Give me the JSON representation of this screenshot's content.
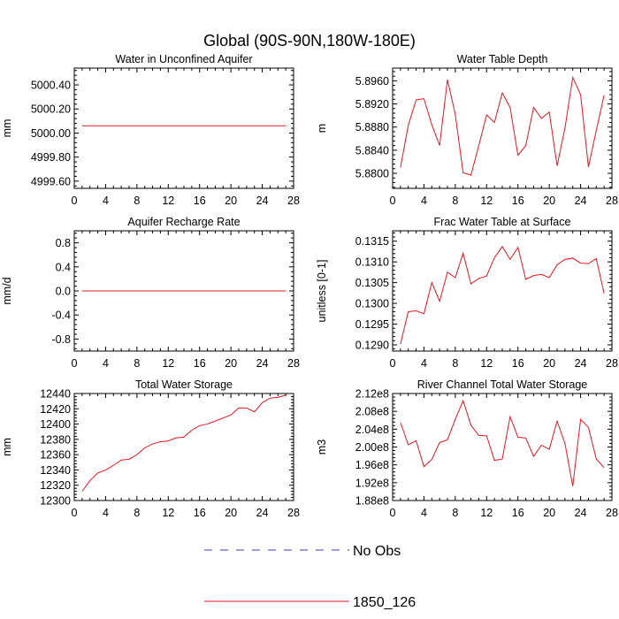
{
  "figure": {
    "title": "Global (90S-90N,180W-180E)",
    "legend": [
      {
        "label": "No Obs",
        "color": "#3b3bbf",
        "style": "dashed"
      },
      {
        "label": "1850_126",
        "color": "#e8141e",
        "style": "solid"
      }
    ]
  },
  "chart_data": [
    {
      "type": "line",
      "title": "Water in Unconfined Aquifer",
      "ylabel": "mm",
      "xlim": [
        0,
        28
      ],
      "ylim": [
        4999.54,
        5000.54
      ],
      "xticks": [
        0,
        4,
        8,
        12,
        16,
        20,
        24,
        28
      ],
      "yticks": [
        4999.6,
        4999.8,
        5000.0,
        5000.2,
        5000.4
      ],
      "ytick_labels": [
        "4999.60",
        "4999.80",
        "5000.00",
        "5000.20",
        "5000.40"
      ],
      "grid": false,
      "series": [
        {
          "name": "1850_126",
          "x": [
            1,
            27
          ],
          "values": [
            5000.06,
            5000.06
          ]
        }
      ]
    },
    {
      "type": "line",
      "title": "Water Table Depth",
      "ylabel": "m",
      "xlim": [
        0,
        28
      ],
      "ylim": [
        5.8774,
        5.8982
      ],
      "xticks": [
        0,
        4,
        8,
        12,
        16,
        20,
        24,
        28
      ],
      "yticks": [
        5.88,
        5.884,
        5.888,
        5.892,
        5.896
      ],
      "ytick_labels": [
        "5.8800",
        "5.8840",
        "5.8880",
        "5.8920",
        "5.8960"
      ],
      "grid": false,
      "series": [
        {
          "name": "1850_126",
          "x": [
            1,
            2,
            3,
            4,
            5,
            6,
            7,
            8,
            9,
            10,
            11,
            12,
            13,
            14,
            15,
            16,
            17,
            18,
            19,
            20,
            21,
            22,
            23,
            24,
            25,
            26,
            27
          ],
          "values": [
            5.881,
            5.8883,
            5.8927,
            5.8929,
            5.8884,
            5.8848,
            5.8962,
            5.8902,
            5.8801,
            5.8797,
            5.8848,
            5.8901,
            5.8888,
            5.8939,
            5.8914,
            5.8831,
            5.8848,
            5.8914,
            5.8895,
            5.8906,
            5.8813,
            5.8878,
            5.8966,
            5.8936,
            5.8811,
            5.8874,
            5.8935
          ]
        }
      ]
    },
    {
      "type": "line",
      "title": "Aquifer Recharge Rate",
      "ylabel": "mm/d",
      "xlim": [
        0,
        28
      ],
      "ylim": [
        -1.0,
        1.0
      ],
      "xticks": [
        0,
        4,
        8,
        12,
        16,
        20,
        24,
        28
      ],
      "yticks": [
        -0.8,
        -0.4,
        0.0,
        0.4,
        0.8
      ],
      "ytick_labels": [
        "-0.8",
        "-0.4",
        "0.0",
        "0.4",
        "0.8"
      ],
      "grid": false,
      "series": [
        {
          "name": "1850_126",
          "x": [
            1,
            27
          ],
          "values": [
            0.0,
            0.0
          ]
        }
      ]
    },
    {
      "type": "line",
      "title": "Frac Water Table at Surface",
      "ylabel": "unitless [0-1]",
      "xlim": [
        0,
        28
      ],
      "ylim": [
        0.12885,
        0.13175
      ],
      "xticks": [
        0,
        4,
        8,
        12,
        16,
        20,
        24,
        28
      ],
      "yticks": [
        0.129,
        0.1295,
        0.13,
        0.1305,
        0.131,
        0.1315
      ],
      "ytick_labels": [
        "0.1290",
        "0.1295",
        "0.1300",
        "0.1305",
        "0.1310",
        "0.1315"
      ],
      "grid": false,
      "series": [
        {
          "name": "1850_126",
          "x": [
            1,
            2,
            3,
            4,
            5,
            6,
            7,
            8,
            9,
            10,
            11,
            12,
            13,
            14,
            15,
            16,
            17,
            18,
            19,
            20,
            21,
            22,
            23,
            24,
            25,
            26,
            27
          ],
          "values": [
            0.12902,
            0.1298,
            0.12982,
            0.12975,
            0.1305,
            0.13005,
            0.13075,
            0.13062,
            0.13121,
            0.13047,
            0.1306,
            0.13066,
            0.1311,
            0.13137,
            0.13106,
            0.13135,
            0.13058,
            0.13067,
            0.1307,
            0.13062,
            0.13093,
            0.13106,
            0.13109,
            0.13097,
            0.13096,
            0.13108,
            0.13024
          ]
        }
      ]
    },
    {
      "type": "line",
      "title": "Total Water Storage",
      "ylabel": "mm",
      "xlim": [
        0,
        28
      ],
      "ylim": [
        12300,
        12440
      ],
      "xticks": [
        0,
        4,
        8,
        12,
        16,
        20,
        24,
        28
      ],
      "yticks": [
        12300,
        12320,
        12340,
        12360,
        12380,
        12400,
        12420,
        12440
      ],
      "ytick_labels": [
        "12300",
        "12320",
        "12340",
        "12360",
        "12380",
        "12400",
        "12420",
        "12440"
      ],
      "grid": false,
      "series": [
        {
          "name": "1850_126",
          "x": [
            1,
            2,
            3,
            4,
            5,
            6,
            7,
            8,
            9,
            10,
            11,
            12,
            13,
            14,
            15,
            16,
            17,
            18,
            19,
            20,
            21,
            22,
            23,
            24,
            25,
            26,
            27
          ],
          "values": [
            12312,
            12326,
            12336,
            12340,
            12346,
            12353,
            12354,
            12360,
            12369,
            12374,
            12377,
            12378,
            12382,
            12383,
            12392,
            12398,
            12400,
            12404,
            12408,
            12412,
            12421,
            12421,
            12416,
            12428,
            12434,
            12435,
            12438
          ]
        }
      ]
    },
    {
      "type": "line",
      "title": "River Channel Total Water Storage",
      "ylabel": "m3",
      "xlim": [
        0,
        28
      ],
      "ylim": [
        188000000.0,
        212000000.0
      ],
      "xticks": [
        0,
        4,
        8,
        12,
        16,
        20,
        24,
        28
      ],
      "yticks": [
        188000000.0,
        192000000.0,
        196000000.0,
        200000000.0,
        204000000.0,
        208000000.0,
        212000000.0
      ],
      "ytick_labels": [
        "1.88e8",
        "1.92e8",
        "1.96e8",
        "2.00e8",
        "2.04e8",
        "2.08e8",
        "2.12e8"
      ],
      "grid": false,
      "series": [
        {
          "name": "1850_126",
          "x": [
            1,
            2,
            3,
            4,
            5,
            6,
            7,
            8,
            9,
            10,
            11,
            12,
            13,
            14,
            15,
            16,
            17,
            18,
            19,
            20,
            21,
            22,
            23,
            24,
            25,
            26,
            27
          ],
          "values": [
            205500000.0,
            200500000.0,
            201400000.0,
            195600000.0,
            197200000.0,
            201000000.0,
            201600000.0,
            206200000.0,
            210400000.0,
            204900000.0,
            202600000.0,
            202500000.0,
            197000000.0,
            197300000.0,
            206800000.0,
            202200000.0,
            202000000.0,
            197900000.0,
            200400000.0,
            199500000.0,
            205800000.0,
            200800000.0,
            191200000.0,
            206200000.0,
            204400000.0,
            197300000.0,
            195400000.0
          ]
        }
      ]
    }
  ]
}
